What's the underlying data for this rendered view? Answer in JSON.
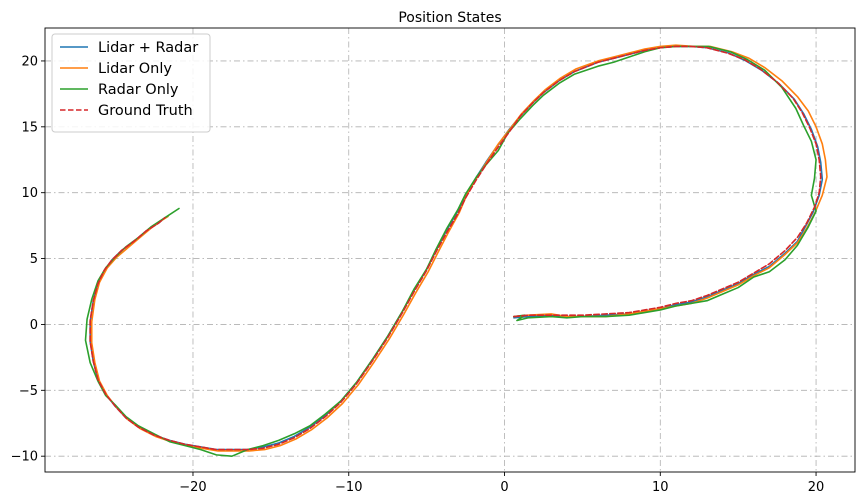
{
  "chart_data": {
    "type": "line",
    "title": "Position States",
    "xlabel": "",
    "ylabel": "",
    "xlim": [
      -29.5,
      22.5
    ],
    "ylim": [
      -11.2,
      22.5
    ],
    "xticks": [
      -20,
      -10,
      0,
      10,
      20
    ],
    "yticks": [
      -10,
      -5,
      0,
      5,
      10,
      15,
      20
    ],
    "xtick_labels": [
      "−20",
      "−10",
      "0",
      "10",
      "20"
    ],
    "ytick_labels": [
      "−10",
      "−5",
      "0",
      "5",
      "10",
      "15",
      "20"
    ],
    "grid": true,
    "legend_position": "top-left",
    "series": [
      {
        "name": "Lidar + Radar",
        "color": "#1f77b4",
        "dash": "solid",
        "x": [
          0.6,
          1.5,
          3,
          4,
          5,
          6.5,
          8,
          9,
          10,
          11,
          12,
          13,
          14,
          15,
          16,
          17,
          18,
          18.8,
          19.3,
          19.8,
          20.2,
          20.4,
          20.3,
          20.1,
          19.7,
          19.2,
          18.6,
          17.6,
          16.5,
          15.5,
          14.4,
          13,
          12,
          11,
          10,
          9,
          8,
          7,
          6,
          4.5,
          3.5,
          2.5,
          1.8,
          1,
          0.3,
          -0.5,
          -1.2,
          -1.8,
          -2.5,
          -3,
          -3.7,
          -4.4,
          -5,
          -5.8,
          -6.6,
          -7.5,
          -8.5,
          -9.5,
          -10.5,
          -11.5,
          -12.5,
          -13.5,
          -14.5,
          -15.5,
          -16.5,
          -17.5,
          -18.5,
          -19.5,
          -20.5,
          -21.5,
          -22.5,
          -23.5,
          -24.3,
          -25,
          -25.6,
          -26.1,
          -26.4,
          -26.6,
          -26.6,
          -26.4,
          -26.1,
          -25.7,
          -25.2,
          -24.6,
          -23.8,
          -23,
          -22.2,
          -21.8
        ],
        "y": [
          0.5,
          0.6,
          0.7,
          0.6,
          0.6,
          0.7,
          0.8,
          1,
          1.2,
          1.5,
          1.7,
          2.1,
          2.6,
          3.1,
          3.8,
          4.4,
          5.4,
          6.3,
          7.4,
          8.5,
          9.8,
          11,
          12.3,
          13.5,
          14.8,
          16,
          17.1,
          18.3,
          19.3,
          20,
          20.6,
          21,
          21.1,
          21.1,
          21,
          20.8,
          20.5,
          20.2,
          19.9,
          19.2,
          18.5,
          17.6,
          16.8,
          15.8,
          14.8,
          13.5,
          12.3,
          11.2,
          9.8,
          8.6,
          7.2,
          5.6,
          4.2,
          2.6,
          0.9,
          -0.9,
          -2.7,
          -4.4,
          -5.8,
          -6.9,
          -7.8,
          -8.5,
          -9,
          -9.3,
          -9.5,
          -9.5,
          -9.5,
          -9.3,
          -9.1,
          -8.8,
          -8.4,
          -7.8,
          -7.1,
          -6.2,
          -5.3,
          -4.2,
          -2.8,
          -1.3,
          0.2,
          1.8,
          3.1,
          4.1,
          4.9,
          5.6,
          6.3,
          7.1,
          7.7,
          8.1
        ]
      },
      {
        "name": "Lidar Only",
        "color": "#ff7f0e",
        "dash": "solid",
        "x": [
          0.6,
          1.5,
          3,
          4,
          5,
          6.5,
          8,
          9,
          10,
          11,
          12,
          13,
          14,
          15,
          16,
          17,
          18,
          18.8,
          19.4,
          19.9,
          20.4,
          20.7,
          20.6,
          20.4,
          20,
          19.5,
          18.8,
          17.8,
          16.7,
          15.7,
          14.6,
          13.2,
          12.2,
          11,
          10,
          9,
          8,
          7,
          6,
          4.6,
          3.6,
          2.6,
          1.9,
          1.1,
          0.4,
          -0.4,
          -1.1,
          -1.7,
          -2.4,
          -2.9,
          -3.6,
          -4.3,
          -4.9,
          -5.7,
          -6.5,
          -7.4,
          -8.4,
          -9.4,
          -10.4,
          -11.4,
          -12.4,
          -13.4,
          -14.4,
          -15.4,
          -16.4,
          -17.4,
          -18.4,
          -19.4,
          -20.4,
          -21.4,
          -22.4,
          -23.4,
          -24.2,
          -24.9,
          -25.5,
          -26,
          -26.3,
          -26.5,
          -26.5,
          -26.3,
          -26,
          -25.5,
          -24.9,
          -24.2,
          -23.5,
          -22.7,
          -22,
          -21.6
        ],
        "y": [
          0.6,
          0.7,
          0.8,
          0.6,
          0.6,
          0.6,
          0.8,
          1,
          1.2,
          1.4,
          1.6,
          2,
          2.5,
          3,
          3.7,
          4.3,
          5.3,
          6.2,
          7.3,
          8.4,
          9.8,
          11.2,
          12.5,
          13.7,
          15,
          16.2,
          17.3,
          18.5,
          19.5,
          20.2,
          20.7,
          21.1,
          21.1,
          21.2,
          21.1,
          20.9,
          20.6,
          20.3,
          20,
          19.4,
          18.7,
          17.8,
          17,
          16,
          14.9,
          13.7,
          12.4,
          11.3,
          9.9,
          8.5,
          7,
          5.4,
          4,
          2.4,
          0.7,
          -1.1,
          -2.9,
          -4.6,
          -6,
          -7.1,
          -8,
          -8.7,
          -9.2,
          -9.5,
          -9.6,
          -9.6,
          -9.6,
          -9.4,
          -9.2,
          -8.9,
          -8.5,
          -7.9,
          -7.2,
          -6.3,
          -5.4,
          -4.3,
          -2.9,
          -1.4,
          0.2,
          1.9,
          3.2,
          4.3,
          5.1,
          5.8,
          6.5,
          7.3,
          7.9,
          8.2
        ]
      },
      {
        "name": "Radar Only",
        "color": "#2ca02c",
        "dash": "solid",
        "x": [
          0.6,
          1.3,
          0.8,
          1.5,
          3,
          4,
          5,
          6.5,
          8,
          9,
          10,
          11,
          12,
          13,
          14,
          15,
          16,
          17,
          18,
          18.8,
          19.5,
          20,
          19.7,
          19.9,
          20,
          19.7,
          19.2,
          18.7,
          17.8,
          16.7,
          15.6,
          14.5,
          13.1,
          12,
          11,
          10,
          9,
          8,
          7,
          6,
          4.5,
          3.5,
          2.5,
          1.8,
          1,
          0.2,
          -0.4,
          -1.2,
          -1.8,
          -2.5,
          -3,
          -3.7,
          -4.4,
          -5,
          -5.8,
          -6.6,
          -7.5,
          -8.5,
          -9.5,
          -10.5,
          -11.5,
          -12.5,
          -13.5,
          -14.5,
          -15.5,
          -16.5,
          -17.5,
          -18.5,
          -19.5,
          -20.5,
          -21.5,
          -22.5,
          -23.5,
          -24.3,
          -25,
          -25.6,
          -26.1,
          -26.6,
          -26.9,
          -26.8,
          -26.5,
          -26.1,
          -25.6,
          -25,
          -24.3,
          -23.5,
          -22.7,
          -21.8,
          -20.9
        ],
        "y": [
          0.6,
          0.7,
          0.3,
          0.5,
          0.6,
          0.5,
          0.6,
          0.6,
          0.7,
          0.9,
          1.1,
          1.4,
          1.6,
          1.8,
          2.3,
          2.8,
          3.6,
          4,
          4.9,
          6,
          7.4,
          8.6,
          9.8,
          11.1,
          12.5,
          13.9,
          15.1,
          16.4,
          18,
          19.3,
          20.1,
          20.7,
          21.1,
          21.1,
          21.1,
          21,
          20.7,
          20.3,
          19.9,
          19.6,
          19,
          18.3,
          17.4,
          16.6,
          15.6,
          14.5,
          13.2,
          12.1,
          11.2,
          9.9,
          8.7,
          7.3,
          5.7,
          4.2,
          2.7,
          0.9,
          -0.9,
          -2.7,
          -4.4,
          -5.8,
          -6.8,
          -7.7,
          -8.3,
          -8.8,
          -9.2,
          -9.5,
          -10,
          -9.9,
          -9.5,
          -9.2,
          -8.9,
          -8.3,
          -7.7,
          -7,
          -6.1,
          -5.4,
          -4.3,
          -2.9,
          -1.2,
          0.4,
          1.9,
          3.3,
          4.3,
          5.1,
          5.9,
          6.6,
          7.4,
          8.1,
          8.8
        ]
      },
      {
        "name": "Ground Truth",
        "color": "#d62728",
        "dash": "dashed",
        "x": [
          0.6,
          1.5,
          3,
          4,
          5,
          6.5,
          8,
          9,
          10,
          11,
          12,
          13,
          14,
          15,
          16,
          17,
          18,
          18.8,
          19.4,
          19.9,
          20.2,
          20.3,
          20.2,
          20,
          19.6,
          19.1,
          18.5,
          17.5,
          16.4,
          15.4,
          14.3,
          13,
          12,
          11,
          10,
          9,
          8,
          7,
          6,
          4.5,
          3.5,
          2.5,
          1.8,
          1,
          0.3,
          -0.5,
          -1.2,
          -1.8,
          -2.5,
          -3,
          -3.7,
          -4.4,
          -5,
          -5.8,
          -6.6,
          -7.5,
          -8.5,
          -9.5,
          -10.5,
          -11.5,
          -12.5,
          -13.5,
          -14.5,
          -15.5,
          -16.5,
          -17.5,
          -18.5,
          -19.5,
          -20.5,
          -21.5,
          -22.5,
          -23.5,
          -24.3,
          -25,
          -25.6,
          -26.1,
          -26.4,
          -26.6,
          -26.6,
          -26.4,
          -26.1,
          -25.7,
          -25.2,
          -24.6,
          -23.8,
          -23,
          -22.2,
          -21.8
        ],
        "y": [
          0.6,
          0.7,
          0.7,
          0.7,
          0.7,
          0.8,
          0.9,
          1.1,
          1.3,
          1.6,
          1.8,
          2.2,
          2.7,
          3.2,
          3.9,
          4.6,
          5.6,
          6.6,
          7.7,
          8.9,
          10,
          11.2,
          12.5,
          13.7,
          14.9,
          16.1,
          17.2,
          18.4,
          19.4,
          20.1,
          20.6,
          21,
          21.1,
          21.1,
          21,
          20.8,
          20.5,
          20.2,
          19.9,
          19.2,
          18.5,
          17.6,
          16.8,
          15.8,
          14.6,
          13.3,
          12.1,
          11,
          9.6,
          8.4,
          7,
          5.5,
          4.1,
          2.5,
          0.8,
          -1,
          -2.8,
          -4.5,
          -5.9,
          -7,
          -7.9,
          -8.6,
          -9.1,
          -9.4,
          -9.5,
          -9.5,
          -9.5,
          -9.3,
          -9.1,
          -8.8,
          -8.4,
          -7.8,
          -7.1,
          -6.2,
          -5.3,
          -4.2,
          -2.8,
          -1.3,
          0.3,
          1.8,
          3.1,
          4.1,
          4.9,
          5.6,
          6.3,
          7.1,
          7.7,
          8.1
        ]
      }
    ]
  }
}
